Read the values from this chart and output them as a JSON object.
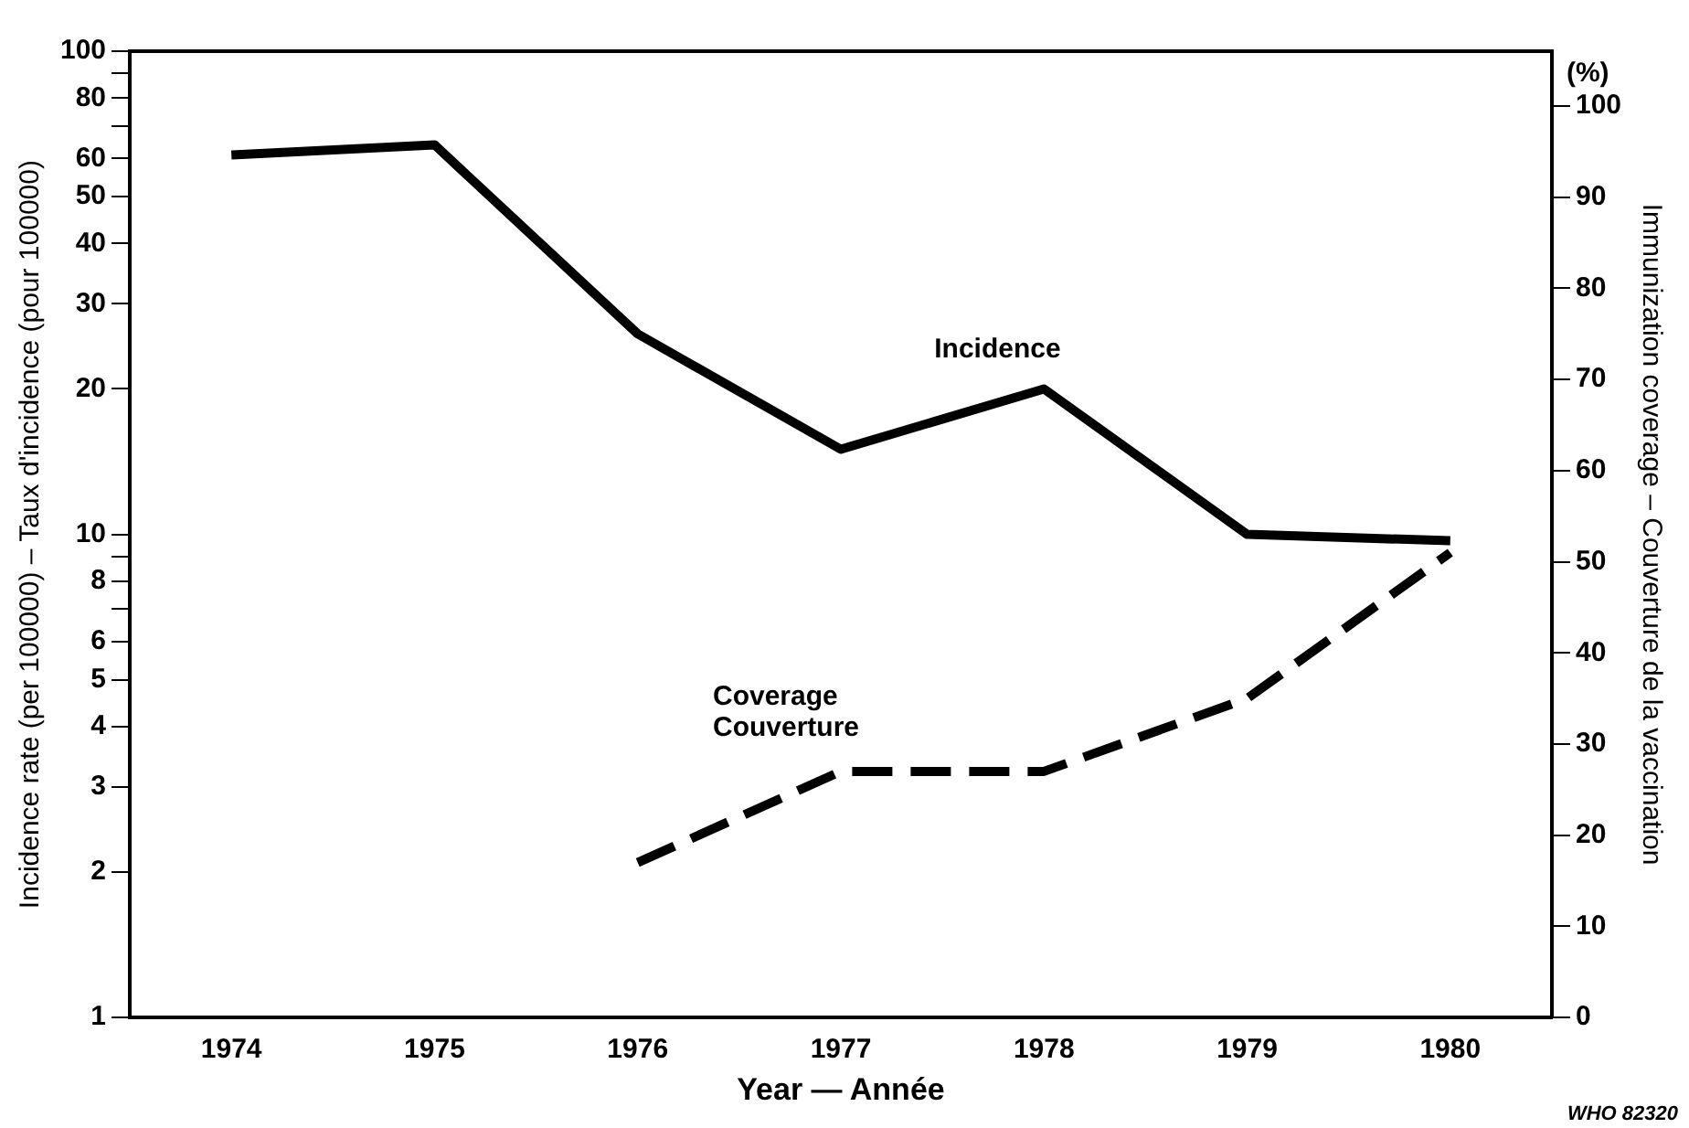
{
  "chart_data": {
    "type": "line",
    "xlabel": "Year — Année",
    "ylabel": "Incidence rate (per 100000) – Taux d'incidence (pour 100000)",
    "y2label": "Immunization coverage – Couverture de la vaccination",
    "categories": [
      "1974",
      "1975",
      "1976",
      "1977",
      "1978",
      "1979",
      "1980"
    ],
    "series": [
      {
        "name": "Incidence",
        "color": "#000000",
        "values": [
          61,
          64,
          26,
          15,
          20,
          10,
          9.7
        ],
        "line_style": "solid"
      },
      {
        "name": "Coverage\nCouverture",
        "color": "#000000",
        "values": [
          null,
          null,
          17,
          27,
          27,
          35,
          51
        ],
        "axis": "y2",
        "line_style": "dashed"
      }
    ],
    "log": "y",
    "ylim": [
      1,
      100
    ],
    "yticks": [
      1,
      2,
      3,
      4,
      5,
      6,
      {
        "value": 7,
        "label": null
      },
      8,
      {
        "value": 9,
        "label": null
      },
      10,
      20,
      30,
      40,
      50,
      60,
      {
        "value": 70,
        "label": null
      },
      80,
      {
        "value": 90,
        "label": null
      },
      100
    ],
    "y2lim": [
      0,
      106
    ],
    "y2ticks": [
      0,
      10,
      20,
      30,
      40,
      50,
      60,
      70,
      80,
      90,
      100
    ],
    "grid": false,
    "legend": false,
    "marker": "none",
    "annotations": [
      "(%)",
      "WHO 82320"
    ]
  }
}
